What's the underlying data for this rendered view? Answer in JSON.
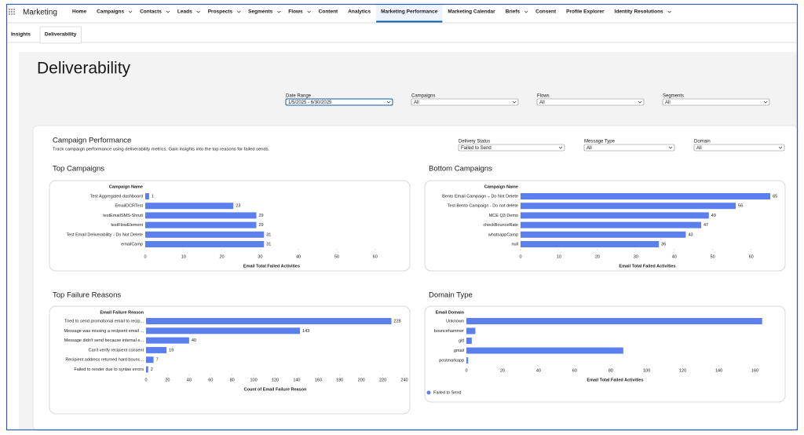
{
  "header": {
    "app_name": "Marketing",
    "nav": [
      {
        "label": "Home"
      },
      {
        "label": "Campaigns",
        "menu": true
      },
      {
        "label": "Contacts",
        "menu": true
      },
      {
        "label": "Leads",
        "menu": true
      },
      {
        "label": "Prospects",
        "menu": true
      },
      {
        "label": "Segments",
        "menu": true
      },
      {
        "label": "Flows",
        "menu": true
      },
      {
        "label": "Content"
      },
      {
        "label": "Analytics"
      },
      {
        "label": "Marketing Performance",
        "active": true
      },
      {
        "label": "Marketing Calendar"
      },
      {
        "label": "Briefs",
        "menu": true
      },
      {
        "label": "Consent"
      },
      {
        "label": "Profile Explorer"
      },
      {
        "label": "Identity Resolutions",
        "menu": true
      }
    ]
  },
  "tabs": [
    {
      "label": "Insights"
    },
    {
      "label": "Deliverability",
      "active": true
    }
  ],
  "page_title": "Deliverability",
  "filters": [
    {
      "label": "Date Range",
      "value": "1/5/2025 - 6/30/2025",
      "focused": true
    },
    {
      "label": "Campaigns",
      "value": "All"
    },
    {
      "label": "Flows",
      "value": "All"
    },
    {
      "label": "Segments",
      "value": "All"
    }
  ],
  "section": {
    "title": "Campaign Performance",
    "subtitle": "Track campaign performance using deliverability metrics. Gain insights into the top reasons for failed sends.",
    "filters": [
      {
        "label": "Delivery Status",
        "value": "Failed to Send"
      },
      {
        "label": "Message Type",
        "value": "All"
      },
      {
        "label": "Domain",
        "value": "All"
      }
    ]
  },
  "chart_data": [
    {
      "type": "bar",
      "title": "Top Campaigns",
      "y_label": "Campaign Name",
      "x_label": "Email Total Failed Activities",
      "color": "#5b80ee",
      "data_labels": true,
      "categories": [
        "Test Aggregated dashboard",
        "EmailDCRTest",
        "testEmailSMS-Shruti",
        "testFlowElement",
        "Test Email Deliverability - Do Not Delete",
        "emailCamp"
      ],
      "values": [
        1,
        23,
        29,
        29,
        31,
        31
      ],
      "xlim": [
        0,
        66
      ],
      "xticks": [
        0,
        10,
        20,
        30,
        40,
        50,
        60
      ]
    },
    {
      "type": "bar",
      "title": "Bottom Campaigns",
      "y_label": "Campaign Name",
      "x_label": "Email Total Failed Activities",
      "color": "#5b80ee",
      "data_labels": true,
      "categories": [
        "Bento Email Campaign – Do Not Delete",
        "Test Bento Campaign - Do not delete",
        "MCE Q3 Demo",
        "checkBounceRate",
        "whatsappCamp",
        "null"
      ],
      "values": [
        65,
        56,
        49,
        47,
        43,
        36
      ],
      "xlim": [
        0,
        66
      ],
      "xticks": [
        0,
        10,
        20,
        30,
        40,
        50,
        60
      ]
    },
    {
      "type": "bar",
      "title": "Top Failure Reasons",
      "y_label": "Email Failure Reason",
      "x_label": "Count of Email Failure Reason",
      "color": "#5b80ee",
      "data_labels": true,
      "categories": [
        "Tried to send promotional email to recip...",
        "Message was missing a recipient email ...",
        "Message didn't send because internal e...",
        "Can't verify recipient consent",
        "Recipient address returned hard bounc...",
        "Failed to render due to syntax errors"
      ],
      "values": [
        228,
        143,
        40,
        19,
        7,
        2
      ],
      "xlim": [
        0,
        240
      ],
      "xticks": [
        0,
        20,
        40,
        60,
        80,
        100,
        120,
        140,
        160,
        180,
        200,
        220,
        240
      ]
    },
    {
      "type": "bar",
      "title": "Domain Type",
      "y_label": "Email Domain",
      "x_label": "Email Total Failed Activities",
      "data_labels": false,
      "legend": "bottom-left",
      "categories": [
        "Unknown",
        "bouncehammer",
        "gitl",
        "gmail",
        "postmarkapp"
      ],
      "series": [
        {
          "name": "Failed to Send",
          "color": "#5b80ee",
          "values": [
            164,
            5,
            3,
            87,
            1
          ]
        }
      ],
      "xlim": [
        0,
        165
      ],
      "xticks": [
        0,
        20,
        40,
        60,
        80,
        100,
        120,
        140,
        160
      ]
    }
  ]
}
